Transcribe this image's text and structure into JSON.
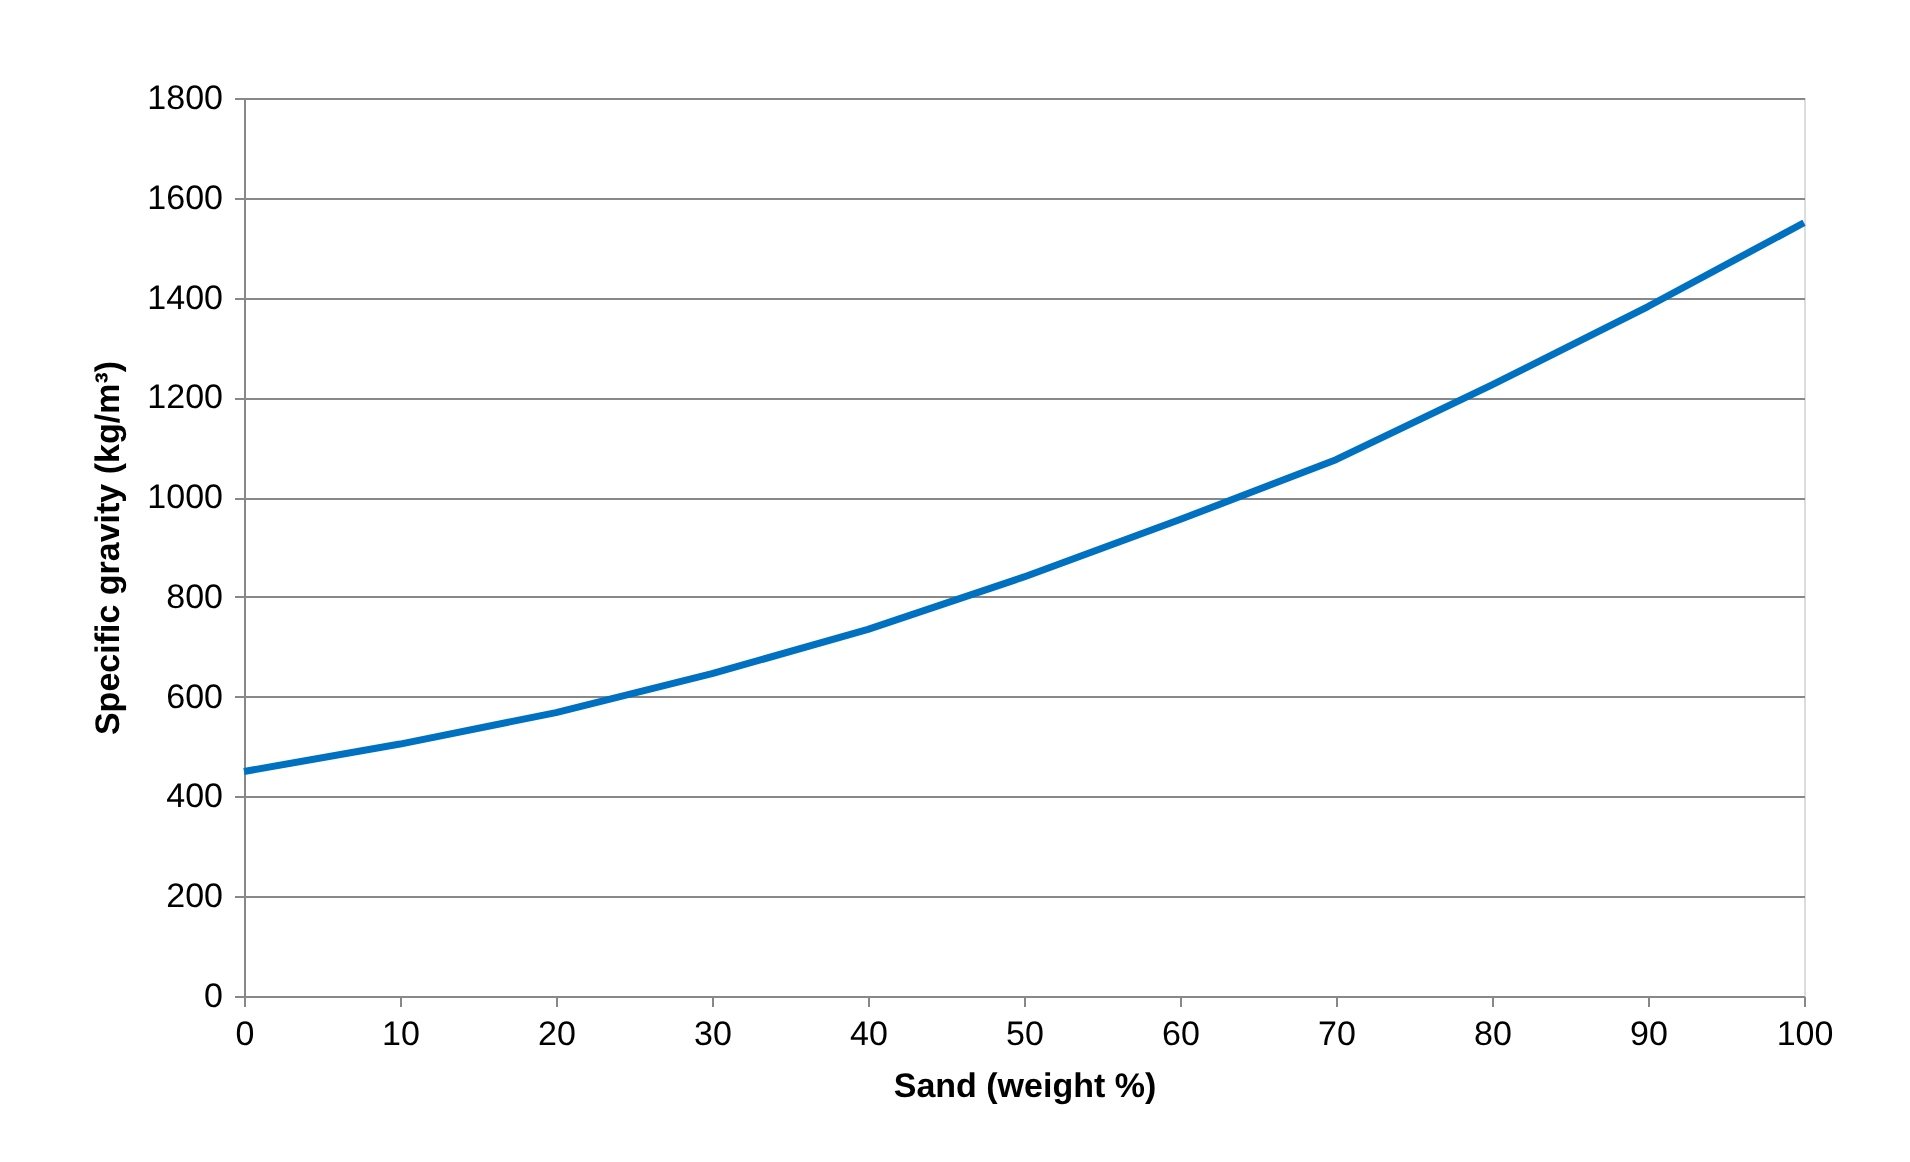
{
  "chart_data": {
    "type": "line",
    "xlabel": "Sand (weight %)",
    "ylabel": "Specific gravity (kg/m³)",
    "x": [
      0,
      10,
      20,
      30,
      40,
      50,
      60,
      70,
      80,
      90,
      100
    ],
    "series": [
      {
        "color": "#0070c0",
        "values": [
          450,
          505,
          568,
          646,
          735,
          840,
          955,
          1075,
          1225,
          1382,
          1550
        ]
      }
    ],
    "xlim": [
      0,
      100
    ],
    "xticks": [
      0,
      10,
      20,
      30,
      40,
      50,
      60,
      70,
      80,
      90,
      100
    ],
    "ylim": [
      0,
      1800
    ],
    "yticks": [
      0,
      200,
      400,
      600,
      800,
      1000,
      1200,
      1400,
      1600,
      1800
    ],
    "grid": "y",
    "marker": "none",
    "line_style": "solid"
  }
}
